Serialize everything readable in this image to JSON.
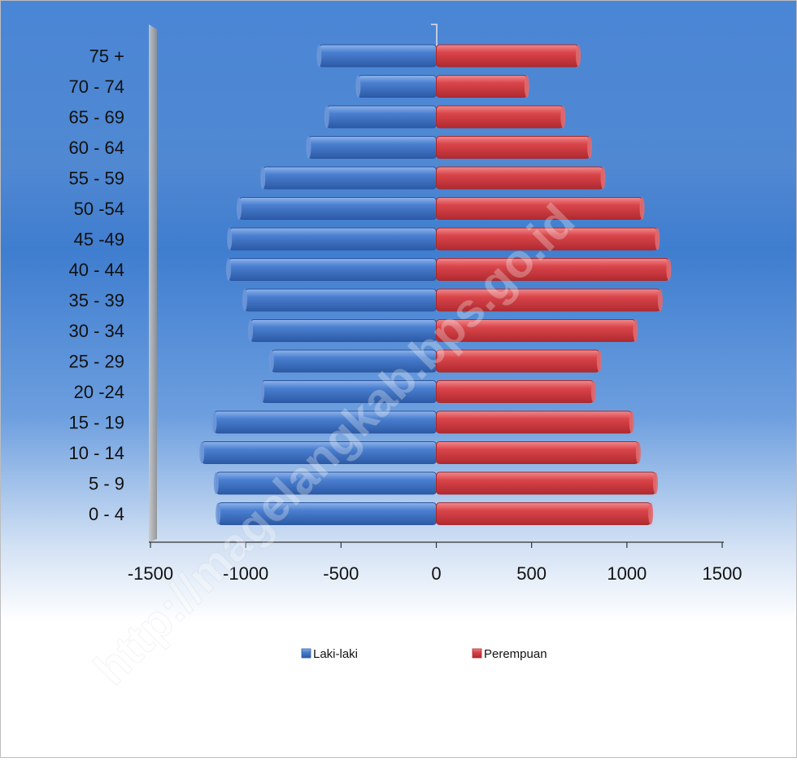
{
  "watermark": "http://magelangkab.bps.go.id",
  "chart_data": {
    "type": "bar",
    "orientation": "horizontal",
    "chart_subtype": "population-pyramid",
    "categories": [
      "0  -  4",
      "5  -  9",
      "10 - 14",
      "15 - 19",
      "20 -24",
      "25 - 29",
      "30 - 34",
      "35 - 39",
      "40 - 44",
      "45 -49",
      "50 -54",
      "55 - 59",
      "60 - 64",
      "65 - 69",
      "70 - 74",
      "75 +"
    ],
    "series": [
      {
        "name": "Laki-laki",
        "color": "#3f73c3",
        "values": [
          -1145,
          -1155,
          -1230,
          -1165,
          -915,
          -865,
          -975,
          -1005,
          -1090,
          -1085,
          -1035,
          -910,
          -670,
          -575,
          -410,
          -615
        ]
      },
      {
        "name": "Perempuan",
        "color": "#d63a3f",
        "values": [
          1125,
          1150,
          1060,
          1025,
          825,
          855,
          1045,
          1175,
          1220,
          1160,
          1080,
          875,
          805,
          665,
          475,
          745
        ]
      }
    ],
    "xlim": [
      -1500,
      1500
    ],
    "xticks": [
      -1500,
      -1000,
      -500,
      0,
      500,
      1000,
      1500
    ],
    "xtick_labels": [
      "-1500",
      "-1000",
      "-500",
      "0",
      "500",
      "1000",
      "1500"
    ],
    "title": "",
    "xlabel": "",
    "ylabel": "",
    "grid": false,
    "legend_position": "bottom",
    "background": {
      "top": "#4b86d3",
      "bottom": "#ffffff"
    }
  }
}
